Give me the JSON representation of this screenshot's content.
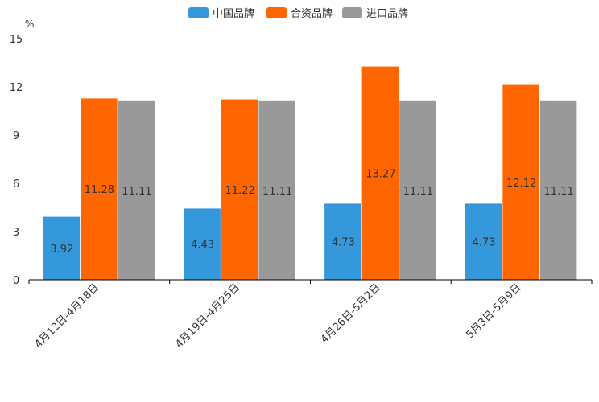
{
  "chart_data": {
    "type": "bar",
    "title": "",
    "ylabel": "%",
    "xlabel": "",
    "ylim": [
      0,
      15
    ],
    "yticks": [
      0,
      3,
      6,
      9,
      12,
      15
    ],
    "categories": [
      "4月12日-4月18日",
      "4月19日-4月25日",
      "4月26日-5月2日",
      "5月3日-5月9日"
    ],
    "series": [
      {
        "name": "中国品牌",
        "color": "#3498db",
        "values": [
          3.92,
          4.43,
          4.73,
          4.73
        ],
        "labels": [
          "3.92",
          "4.43",
          "4.73",
          "4.73"
        ]
      },
      {
        "name": "合资品牌",
        "color": "#ff6600",
        "values": [
          11.28,
          11.22,
          13.27,
          12.12
        ],
        "labels": [
          "11.28",
          "11.22",
          "13.27",
          "12.12"
        ]
      },
      {
        "name": "进口品牌",
        "color": "#999999",
        "values": [
          11.11,
          11.11,
          11.11,
          11.11
        ],
        "labels": [
          "11.11",
          "11.11",
          "11.11",
          "11.11"
        ]
      }
    ],
    "legend_position": "top-center",
    "grid": false
  }
}
